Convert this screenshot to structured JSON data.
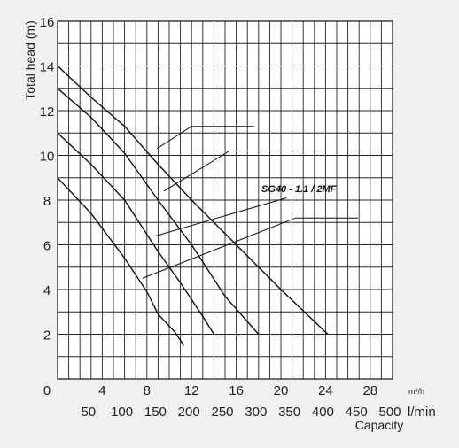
{
  "chart_data": {
    "type": "line",
    "title": "",
    "ylabel": "Total head  (m)",
    "xlabel": "Capacity",
    "x_unit_primary": "m³/h",
    "x_unit_secondary": "l/min",
    "ylim": [
      0,
      16
    ],
    "xlim": [
      0,
      30
    ],
    "grid": true,
    "y_ticks": [
      "0",
      "2",
      "4",
      "6",
      "8",
      "10",
      "12",
      "14",
      "16"
    ],
    "x_ticks_m3h": [
      "4",
      "8",
      "12",
      "16",
      "20",
      "24",
      "28"
    ],
    "x_ticks_lmin": [
      "50",
      "100",
      "150",
      "200",
      "250",
      "300",
      "350",
      "400",
      "450",
      "500"
    ],
    "annotation": "SG40 - 1.1 / 2MF",
    "series": [
      {
        "x": [
          0,
          3,
          6,
          8,
          9,
          10.5,
          11.3
        ],
        "y": [
          9,
          7.4,
          5.4,
          3.9,
          2.9,
          2.1,
          1.5
        ]
      },
      {
        "x": [
          0,
          3,
          6,
          9,
          11,
          13,
          14
        ],
        "y": [
          11,
          9.6,
          8,
          5.7,
          4.3,
          2.8,
          2
        ]
      },
      {
        "x": [
          0,
          3,
          6,
          9,
          12,
          15,
          18
        ],
        "y": [
          13,
          11.7,
          10.1,
          8,
          6,
          3.7,
          2
        ]
      },
      {
        "x": [
          0,
          3,
          6,
          9,
          12,
          16,
          20,
          24.2
        ],
        "y": [
          14,
          12.6,
          11.3,
          9.6,
          8,
          6,
          4,
          2
        ]
      }
    ]
  },
  "labels": {
    "origin": "0",
    "unit_m3h": "m³/h",
    "unit_lmin": "l/min",
    "capacity": "Capacity"
  }
}
